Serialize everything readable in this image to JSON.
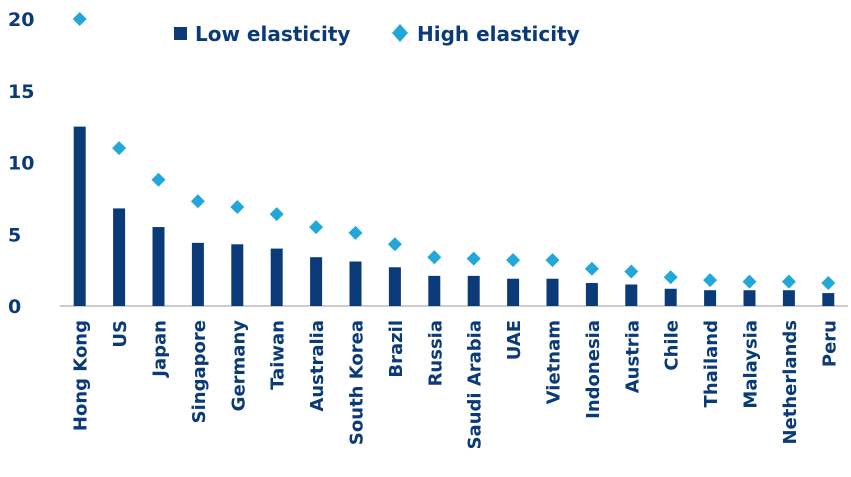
{
  "colors": {
    "low": "#0b3a78",
    "high": "#22a7d9",
    "axis": "#9a9a9a",
    "text": "#0b3a78"
  },
  "chart_data": {
    "type": "bar",
    "categories": [
      "Hong Kong",
      "US",
      "Japan",
      "Singapore",
      "Germany",
      "Taiwan",
      "Australia",
      "South Korea",
      "Brazil",
      "Russia",
      "Saudi Arabia",
      "UAE",
      "Vietnam",
      "Indonesia",
      "Austria",
      "Chile",
      "Thailand",
      "Malaysia",
      "Netherlands",
      "Peru"
    ],
    "series": [
      {
        "name": "Low elasticity",
        "kind": "bar",
        "values": [
          12.5,
          6.8,
          5.5,
          4.4,
          4.3,
          4.0,
          3.4,
          3.1,
          2.7,
          2.1,
          2.1,
          1.9,
          1.9,
          1.6,
          1.5,
          1.2,
          1.1,
          1.1,
          1.1,
          0.9
        ]
      },
      {
        "name": "High elasticity",
        "kind": "marker",
        "values": [
          20.0,
          11.0,
          8.8,
          7.3,
          6.9,
          6.4,
          5.5,
          5.1,
          4.3,
          3.4,
          3.3,
          3.2,
          3.2,
          2.6,
          2.4,
          2.0,
          1.8,
          1.7,
          1.7,
          1.6
        ]
      }
    ],
    "yticks": [
      0,
      5,
      10,
      15,
      20
    ],
    "ylim": [
      0,
      20
    ],
    "legend_position": "top"
  }
}
